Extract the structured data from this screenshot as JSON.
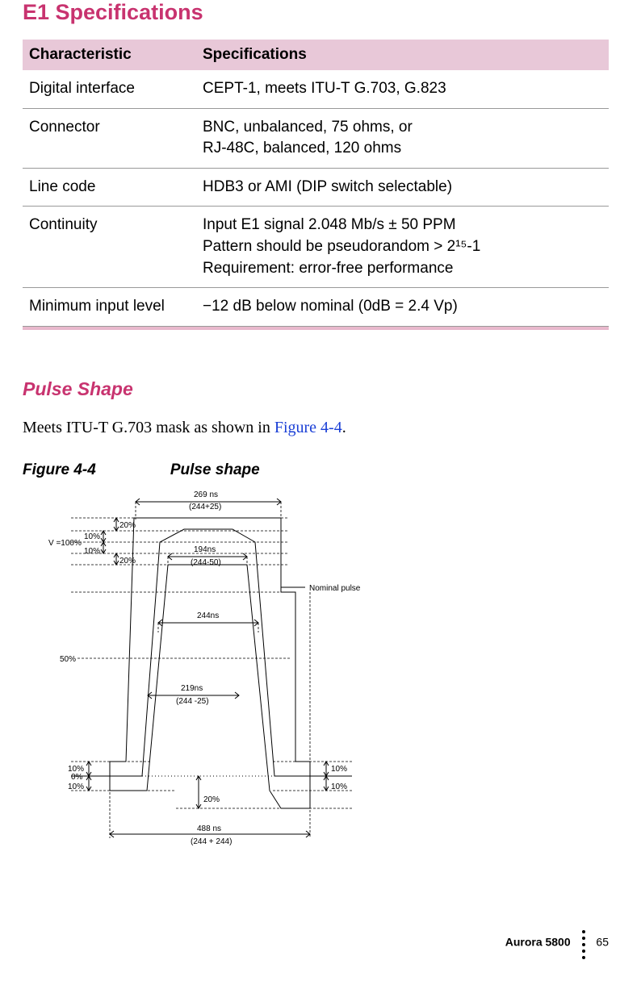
{
  "title": "E1 Specifications",
  "table": {
    "headers": {
      "col1": "Characteristic",
      "col2": "Specifications"
    },
    "rows": [
      {
        "c": "Digital interface",
        "s": "CEPT-1, meets ITU-T G.703, G.823"
      },
      {
        "c": "Connector",
        "s": "BNC, unbalanced, 75 ohms, or\nRJ-48C, balanced, 120 ohms"
      },
      {
        "c": "Line code",
        "s": "HDB3 or AMI (DIP switch selectable)"
      },
      {
        "c": "Continuity",
        "s": "Input E1 signal 2.048 Mb/s ± 50 PPM\nPattern should be pseudorandom > 2¹⁵-1\nRequirement: error-free performance"
      },
      {
        "c": "Minimum input level",
        "s": "−12 dB below nominal (0dB = 2.4 Vp)"
      }
    ]
  },
  "pulse": {
    "heading": "Pulse Shape",
    "body_pre": "Meets ITU-T G.703 mask as shown in ",
    "body_link": "Figure 4-4",
    "body_post": ".",
    "caption_num": "Figure 4-4",
    "caption_title": "Pulse shape"
  },
  "diagram": {
    "labels": {
      "t269": "269 ns",
      "t269b": "(244+25)",
      "t194": "194ns",
      "t194b": "(244-50)",
      "t244": "244ns",
      "t219": "219ns",
      "t219b": "(244 -25)",
      "t488": "488 ns",
      "t488b": "(244 + 244)",
      "nominal": "Nominal pulse",
      "v100": "V =100%",
      "p50": "50%",
      "p20a": "20%",
      "p20b": "20%",
      "p20c": "20%",
      "p10a": "10%",
      "p10b": "10%",
      "p10c": "10%",
      "p10d": "10%",
      "p10e": "10%",
      "p10f": "10%",
      "p0": "0%"
    },
    "colors": {
      "line": "#000000",
      "bg": "#ffffff"
    }
  },
  "footer": {
    "product": "Aurora 5800",
    "page": "65"
  }
}
